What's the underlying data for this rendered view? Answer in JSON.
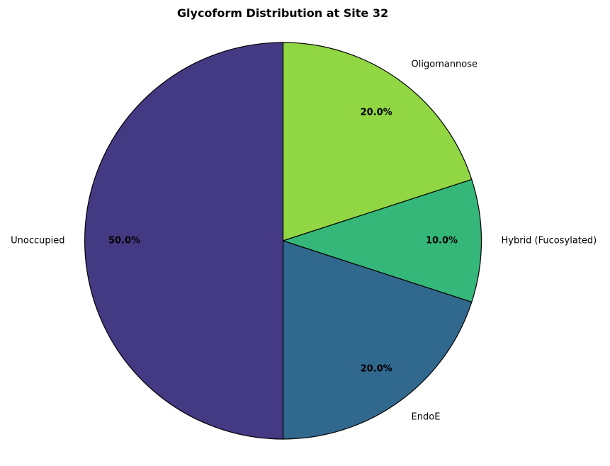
{
  "chart_data": {
    "type": "pie",
    "title": "Glycoform Distribution at Site 32",
    "start_angle_deg": 90,
    "direction": "clockwise",
    "slices": [
      {
        "label": "Oligomannose",
        "value": 20.0,
        "pct_label": "20.0%",
        "color": "#90d743"
      },
      {
        "label": "Hybrid (Fucosylated)",
        "value": 10.0,
        "pct_label": "10.0%",
        "color": "#35b779"
      },
      {
        "label": "EndoE",
        "value": 20.0,
        "pct_label": "20.0%",
        "color": "#31688e"
      },
      {
        "label": "Unoccupied",
        "value": 50.0,
        "pct_label": "50.0%",
        "color": "#443983"
      }
    ],
    "edge_color": "#000000"
  }
}
